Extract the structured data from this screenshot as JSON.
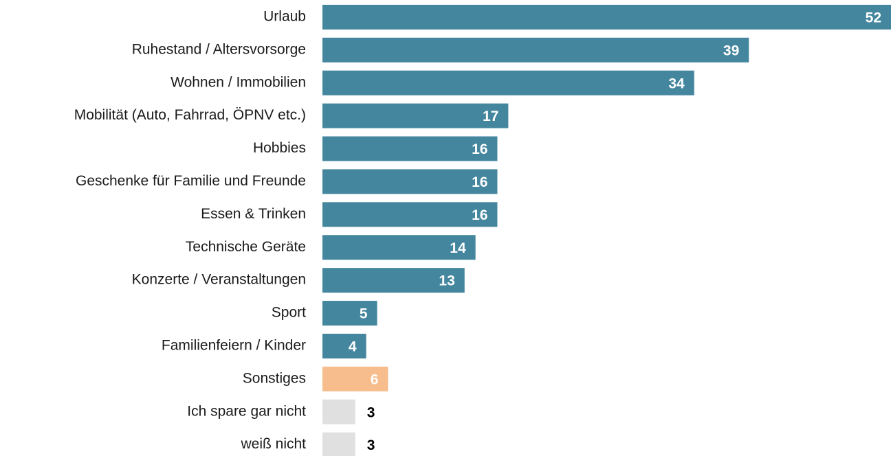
{
  "chart_data": {
    "type": "hbar",
    "categories": [
      "Urlaub",
      "Ruhestand / Altersvorsorge",
      "Wohnen / Immobilien",
      "Mobilität (Auto, Fahrrad, ÖPNV etc.)",
      "Hobbies",
      "Geschenke für Familie und Freunde",
      "Essen & Trinken",
      "Technische Geräte",
      "Konzerte / Veranstaltungen",
      "Sport",
      "Familienfeiern / Kinder",
      "Sonstiges",
      "Ich spare gar nicht",
      "weiß nicht"
    ],
    "values": [
      52,
      39,
      34,
      17,
      16,
      16,
      16,
      14,
      13,
      5,
      4,
      6,
      3,
      3
    ],
    "colors": [
      "#44869e",
      "#44869e",
      "#44869e",
      "#44869e",
      "#44869e",
      "#44869e",
      "#44869e",
      "#44869e",
      "#44869e",
      "#44869e",
      "#44869e",
      "#f7bd8c",
      "#e0e0e0",
      "#e0e0e0"
    ]
  }
}
